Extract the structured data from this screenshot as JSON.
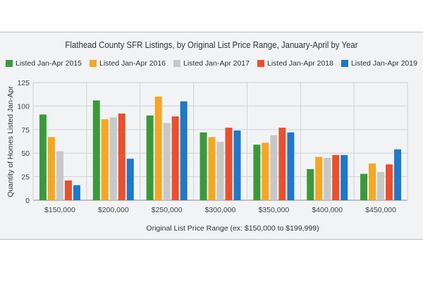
{
  "chart_data": {
    "type": "bar",
    "title": "Flathead County SFR Listings, by Original List Price Range, January-April by Year",
    "xlabel": "Original List Price Range (ex: $150,000 to $199,999)",
    "ylabel": "Quantity of Homes Listed Jan-Apr",
    "ylim": [
      0,
      125
    ],
    "yticks": [
      "0",
      "25",
      "50",
      "75",
      "100",
      "125"
    ],
    "grid": true,
    "legend_position": "top",
    "categories": [
      "$150,000",
      "$200,000",
      "$250,000",
      "$300,000",
      "$350,000",
      "$400,000",
      "$450,000"
    ],
    "series": [
      {
        "name": "Listed Jan-Apr 2015",
        "color": "#3a9a3a",
        "values": [
          91,
          106,
          90,
          72,
          59,
          33,
          28
        ]
      },
      {
        "name": "Listed Jan-Apr 2016",
        "color": "#f5a623",
        "values": [
          67,
          86,
          110,
          67,
          61,
          46,
          39
        ]
      },
      {
        "name": "Listed Jan-Apr 2017",
        "color": "#c8c8c8",
        "values": [
          52,
          88,
          82,
          62,
          69,
          45,
          30
        ]
      },
      {
        "name": "Listed Jan-Apr 2018",
        "color": "#e8502e",
        "values": [
          21,
          92,
          89,
          77,
          77,
          48,
          38
        ]
      },
      {
        "name": "Listed Jan-Apr 2019",
        "color": "#1f78c8",
        "values": [
          16,
          44,
          105,
          74,
          72,
          48,
          54
        ]
      }
    ]
  }
}
